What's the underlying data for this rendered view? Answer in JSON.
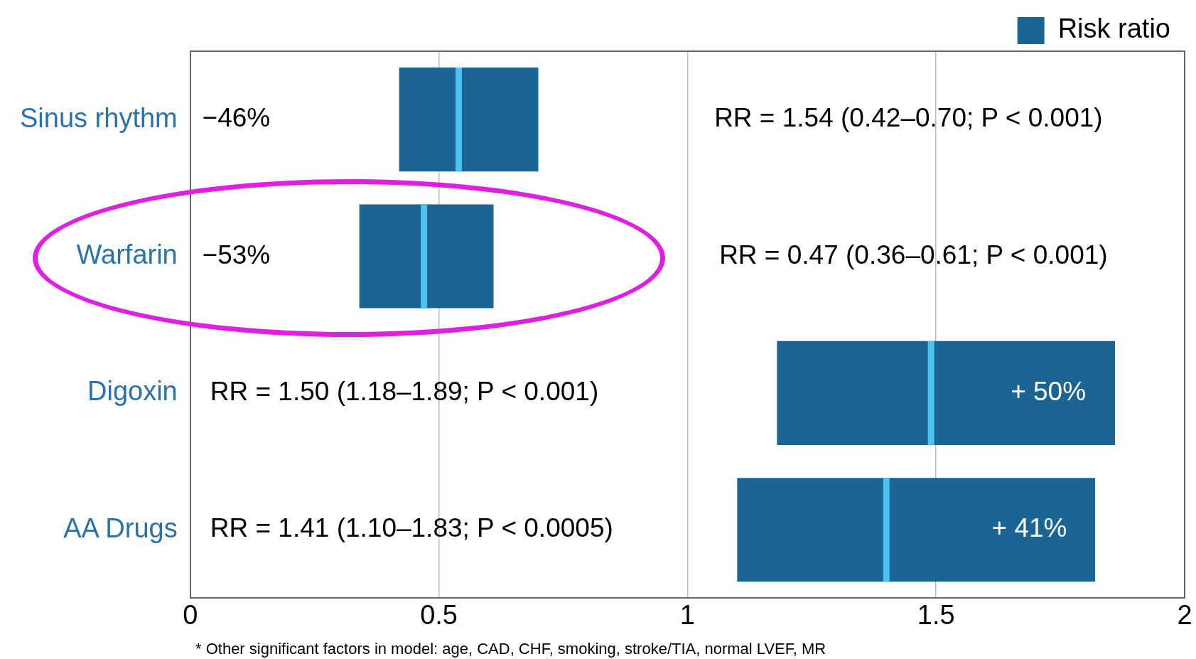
{
  "chart_data": {
    "type": "box",
    "orientation": "horizontal",
    "categories": [
      "Sinus rhythm",
      "Warfarin",
      "Digoxin",
      "AA Drugs"
    ],
    "series": [
      {
        "name": "Risk ratio",
        "color": "#1b6593",
        "boxes": [
          {
            "low": 0.42,
            "q1": 0.42,
            "median": 0.54,
            "q3": 0.7,
            "high": 0.7
          },
          {
            "low": 0.34,
            "q1": 0.34,
            "median": 0.47,
            "q3": 0.61,
            "high": 0.61
          },
          {
            "low": 1.18,
            "q1": 1.18,
            "median": 1.49,
            "q3": 1.86,
            "high": 1.86
          },
          {
            "low": 1.1,
            "q1": 1.1,
            "median": 1.4,
            "q3": 1.82,
            "high": 1.82
          }
        ]
      }
    ],
    "xlim": [
      0,
      2
    ],
    "xticks": [
      0,
      0.5,
      1,
      1.5,
      2
    ],
    "grid": "x",
    "legend": "top right",
    "annotations": [
      "−46%",
      "RR = 1.54 (0.42–0.70; P < 0.001)",
      "−53%",
      "RR = 0.47 (0.36–0.61; P < 0.001)",
      "RR = 1.50 (1.18–1.89; P < 0.001)",
      "+ 50%",
      "RR = 1.41 (1.10–1.83; P < 0.0005)",
      "+ 41%",
      "* Other significant factors in model: age, CAD, CHF, smoking, stroke/TIA, normal LVEF, MR"
    ]
  }
}
